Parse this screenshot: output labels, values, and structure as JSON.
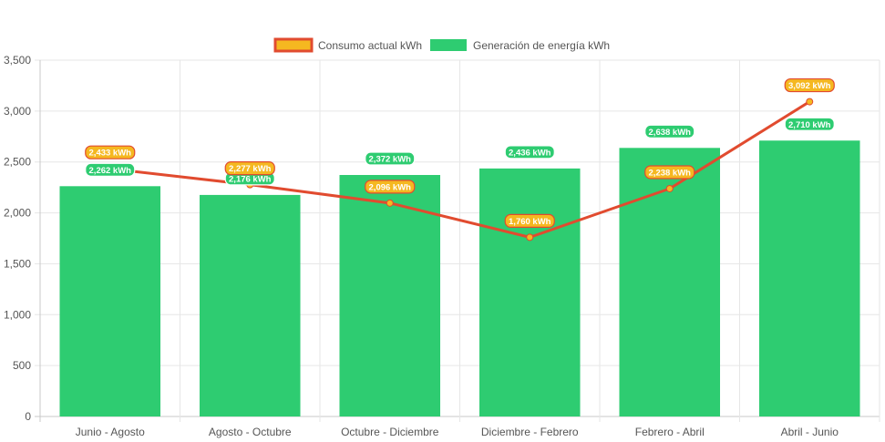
{
  "chart_data": {
    "type": "bar",
    "title": "",
    "xlabel": "",
    "ylabel": "",
    "ylim": [
      0,
      3500
    ],
    "yticks": [
      "0",
      "500",
      "1,000",
      "1,500",
      "2,000",
      "2,500",
      "3,000",
      "3,500"
    ],
    "ytick_values": [
      0,
      500,
      1000,
      1500,
      2000,
      2500,
      3000,
      3500
    ],
    "grid": true,
    "legend_position": "top-center",
    "categories": [
      "Junio - Agosto",
      "Agosto - Octubre",
      "Octubre - Diciembre",
      "Diciembre - Febrero",
      "Febrero - Abril",
      "Abril - Junio"
    ],
    "series": [
      {
        "name": "Consumo actual kWh",
        "kind": "line",
        "color": "#e14b2f",
        "label_color": "#f5b820",
        "label_border": "#e14b2f",
        "values": [
          2433,
          2277,
          2096,
          1760,
          2238,
          3092
        ],
        "labels": [
          "2,433 kWh",
          "2,277 kWh",
          "2,096 kWh",
          "1,760 kWh",
          "2,238 kWh",
          "3,092 kWh"
        ]
      },
      {
        "name": "Generación de energía kWh",
        "kind": "bar",
        "color": "#2ecc71",
        "label_color": "#2ecc71",
        "label_border": "#ffffff",
        "values": [
          2262,
          2176,
          2372,
          2436,
          2638,
          2710
        ],
        "labels": [
          "2,262 kWh",
          "2,176 kWh",
          "2,372 kWh",
          "2,436 kWh",
          "2,638 kWh",
          "2,710 kWh"
        ]
      }
    ]
  }
}
